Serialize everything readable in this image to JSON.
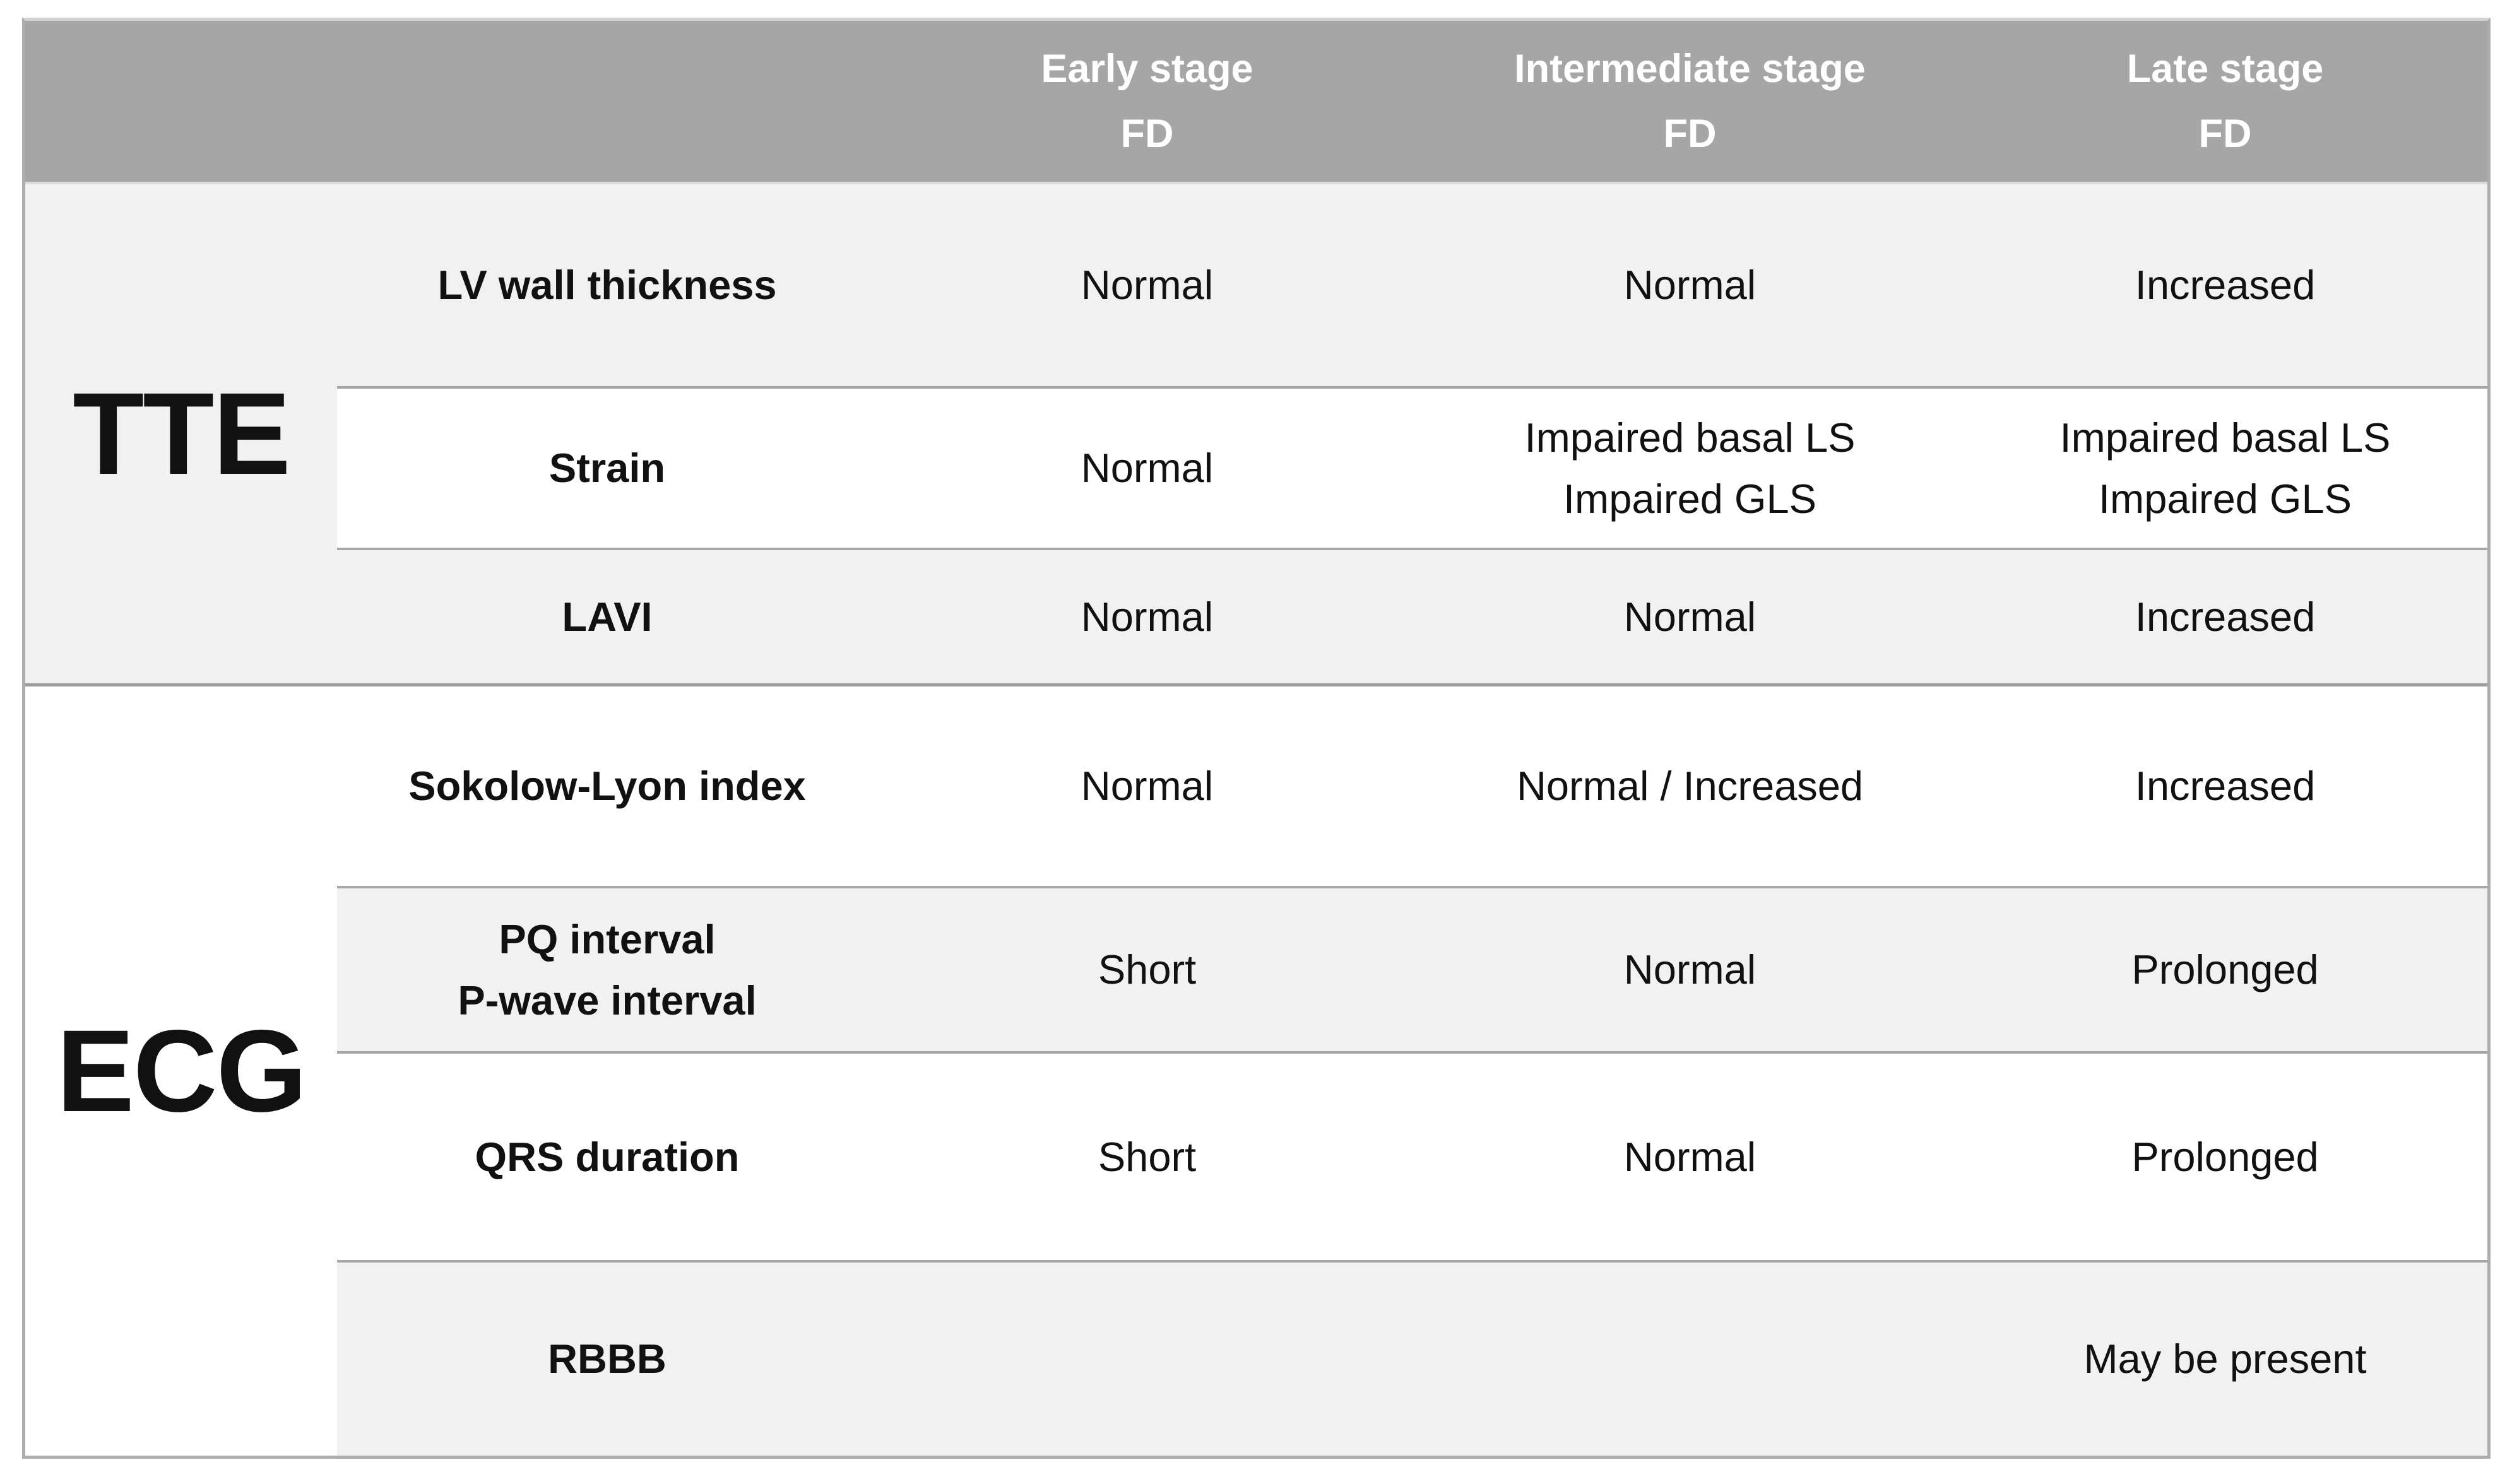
{
  "table": {
    "header": {
      "early": "Early stage\nFD",
      "intermediate": "Intermediate stage\nFD",
      "late": "Late stage\nFD"
    },
    "sections": [
      {
        "label": "TTE",
        "rows": [
          {
            "parameter": "LV wall thickness",
            "early": "Normal",
            "intermediate": "Normal",
            "late": "Increased"
          },
          {
            "parameter": "Strain",
            "early": "Normal",
            "intermediate": "Impaired basal LS\nImpaired GLS",
            "late": "Impaired basal LS\nImpaired GLS"
          },
          {
            "parameter": "LAVI",
            "early": "Normal",
            "intermediate": "Normal",
            "late": "Increased"
          }
        ]
      },
      {
        "label": "ECG",
        "rows": [
          {
            "parameter": "Sokolow-Lyon index",
            "early": "Normal",
            "intermediate": "Normal / Increased",
            "late": "Increased"
          },
          {
            "parameter": "PQ interval\nP-wave interval",
            "early": "Short",
            "intermediate": "Normal",
            "late": "Prolonged"
          },
          {
            "parameter": "QRS duration",
            "early": "Short",
            "intermediate": "Normal",
            "late": "Prolonged"
          },
          {
            "parameter": "RBBB",
            "early": "",
            "intermediate": "",
            "late": "May be present"
          }
        ]
      }
    ]
  },
  "colors": {
    "header_bg": "#a6a6a6",
    "header_text": "#ffffff",
    "row_shaded_bg": "#f1f1f1",
    "row_white_bg": "#ffffff",
    "grid_line": "#a6a6a6",
    "section_line": "#9a9a9a",
    "outer_border": "#adadad",
    "text": "#111111"
  }
}
